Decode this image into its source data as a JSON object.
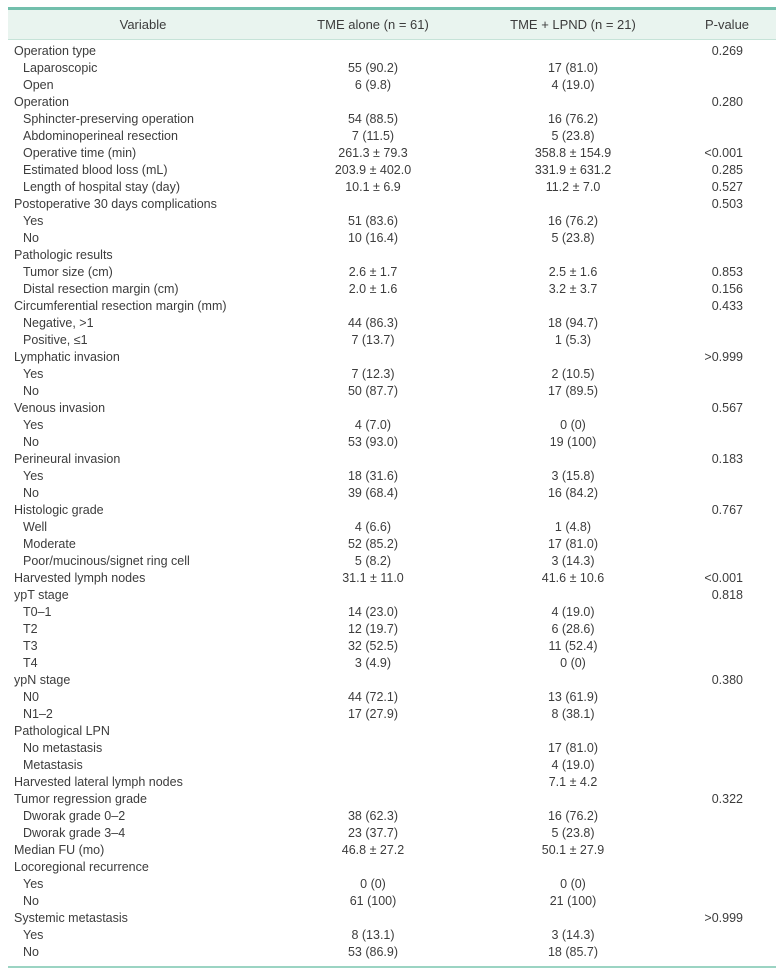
{
  "colors": {
    "top_border": "#72bfac",
    "header_bg": "#e9f4ef",
    "header_underline": "#c6e3d8",
    "bottom_border": "#9bd4c3",
    "text": "#3c3c3c"
  },
  "table": {
    "columns": [
      "Variable",
      "TME alone (n = 61)",
      "TME + LPND (n = 21)",
      "P-value"
    ],
    "rows": [
      {
        "label": "Operation type",
        "indent": 0,
        "c1": "",
        "c2": "",
        "p": "0.269"
      },
      {
        "label": "Laparoscopic",
        "indent": 1,
        "c1": "55 (90.2)",
        "c2": "17 (81.0)",
        "p": ""
      },
      {
        "label": "Open",
        "indent": 1,
        "c1": "6 (9.8)",
        "c2": "4 (19.0)",
        "p": ""
      },
      {
        "label": "Operation",
        "indent": 0,
        "c1": "",
        "c2": "",
        "p": "0.280"
      },
      {
        "label": "Sphincter-preserving operation",
        "indent": 1,
        "c1": "54 (88.5)",
        "c2": "16 (76.2)",
        "p": ""
      },
      {
        "label": "Abdominoperineal resection",
        "indent": 1,
        "c1": "7 (11.5)",
        "c2": "5 (23.8)",
        "p": ""
      },
      {
        "label": "Operative time (min)",
        "indent": 1,
        "c1": "261.3 ± 79.3",
        "c2": "358.8 ± 154.9",
        "p": "<0.001"
      },
      {
        "label": "Estimated blood loss (mL)",
        "indent": 1,
        "c1": "203.9 ± 402.0",
        "c2": "331.9 ± 631.2",
        "p": "0.285"
      },
      {
        "label": "Length of hospital stay (day)",
        "indent": 1,
        "c1": "10.1 ± 6.9",
        "c2": "11.2 ± 7.0",
        "p": "0.527"
      },
      {
        "label": "Postoperative 30 days complications",
        "indent": 0,
        "c1": "",
        "c2": "",
        "p": "0.503"
      },
      {
        "label": "Yes",
        "indent": 1,
        "c1": "51 (83.6)",
        "c2": "16 (76.2)",
        "p": ""
      },
      {
        "label": "No",
        "indent": 1,
        "c1": "10 (16.4)",
        "c2": "5 (23.8)",
        "p": ""
      },
      {
        "label": "Pathologic results",
        "indent": 0,
        "c1": "",
        "c2": "",
        "p": ""
      },
      {
        "label": "Tumor size (cm)",
        "indent": 1,
        "c1": "2.6 ± 1.7",
        "c2": "2.5 ± 1.6",
        "p": "0.853"
      },
      {
        "label": "Distal resection margin (cm)",
        "indent": 1,
        "c1": "2.0 ± 1.6",
        "c2": "3.2 ± 3.7",
        "p": "0.156"
      },
      {
        "label": "Circumferential resection margin (mm)",
        "indent": 0,
        "c1": "",
        "c2": "",
        "p": "0.433"
      },
      {
        "label": "Negative, >1",
        "indent": 1,
        "c1": "44 (86.3)",
        "c2": "18 (94.7)",
        "p": ""
      },
      {
        "label": "Positive, ≤1",
        "indent": 1,
        "c1": "7 (13.7)",
        "c2": "1 (5.3)",
        "p": ""
      },
      {
        "label": "Lymphatic invasion",
        "indent": 0,
        "c1": "",
        "c2": "",
        "p": ">0.999"
      },
      {
        "label": "Yes",
        "indent": 1,
        "c1": "7 (12.3)",
        "c2": "2 (10.5)",
        "p": ""
      },
      {
        "label": "No",
        "indent": 1,
        "c1": "50 (87.7)",
        "c2": "17 (89.5)",
        "p": ""
      },
      {
        "label": "Venous invasion",
        "indent": 0,
        "c1": "",
        "c2": "",
        "p": "0.567"
      },
      {
        "label": "Yes",
        "indent": 1,
        "c1": "4 (7.0)",
        "c2": "0 (0)",
        "p": ""
      },
      {
        "label": "No",
        "indent": 1,
        "c1": "53 (93.0)",
        "c2": "19 (100)",
        "p": ""
      },
      {
        "label": "Perineural invasion",
        "indent": 0,
        "c1": "",
        "c2": "",
        "p": "0.183"
      },
      {
        "label": "Yes",
        "indent": 1,
        "c1": "18 (31.6)",
        "c2": "3 (15.8)",
        "p": ""
      },
      {
        "label": "No",
        "indent": 1,
        "c1": "39 (68.4)",
        "c2": "16 (84.2)",
        "p": ""
      },
      {
        "label": "Histologic grade",
        "indent": 0,
        "c1": "",
        "c2": "",
        "p": "0.767"
      },
      {
        "label": "Well",
        "indent": 1,
        "c1": "4 (6.6)",
        "c2": "1 (4.8)",
        "p": ""
      },
      {
        "label": "Moderate",
        "indent": 1,
        "c1": "52 (85.2)",
        "c2": "17 (81.0)",
        "p": ""
      },
      {
        "label": "Poor/mucinous/signet ring cell",
        "indent": 1,
        "c1": "5 (8.2)",
        "c2": "3 (14.3)",
        "p": ""
      },
      {
        "label": "Harvested lymph nodes",
        "indent": 0,
        "c1": "31.1 ± 11.0",
        "c2": "41.6 ± 10.6",
        "p": "<0.001"
      },
      {
        "label": "ypT stage",
        "indent": 0,
        "c1": "",
        "c2": "",
        "p": "0.818"
      },
      {
        "label": "T0–1",
        "indent": 1,
        "c1": "14 (23.0)",
        "c2": "4 (19.0)",
        "p": ""
      },
      {
        "label": "T2",
        "indent": 1,
        "c1": "12 (19.7)",
        "c2": "6 (28.6)",
        "p": ""
      },
      {
        "label": "T3",
        "indent": 1,
        "c1": "32 (52.5)",
        "c2": "11 (52.4)",
        "p": ""
      },
      {
        "label": "T4",
        "indent": 1,
        "c1": "3 (4.9)",
        "c2": "0 (0)",
        "p": ""
      },
      {
        "label": "ypN stage",
        "indent": 0,
        "c1": "",
        "c2": "",
        "p": "0.380"
      },
      {
        "label": "N0",
        "indent": 1,
        "c1": "44 (72.1)",
        "c2": "13 (61.9)",
        "p": ""
      },
      {
        "label": "N1–2",
        "indent": 1,
        "c1": "17 (27.9)",
        "c2": "8 (38.1)",
        "p": ""
      },
      {
        "label": "Pathological LPN",
        "indent": 0,
        "c1": "",
        "c2": "",
        "p": ""
      },
      {
        "label": "No metastasis",
        "indent": 1,
        "c1": "",
        "c2": "17 (81.0)",
        "p": ""
      },
      {
        "label": "Metastasis",
        "indent": 1,
        "c1": "",
        "c2": "4 (19.0)",
        "p": ""
      },
      {
        "label": "Harvested lateral lymph nodes",
        "indent": 0,
        "c1": "",
        "c2": "7.1 ± 4.2",
        "p": ""
      },
      {
        "label": "Tumor regression grade",
        "indent": 0,
        "c1": "",
        "c2": "",
        "p": "0.322"
      },
      {
        "label": "Dworak grade 0–2",
        "indent": 1,
        "c1": "38 (62.3)",
        "c2": "16 (76.2)",
        "p": ""
      },
      {
        "label": "Dworak grade 3–4",
        "indent": 1,
        "c1": "23 (37.7)",
        "c2": "5 (23.8)",
        "p": ""
      },
      {
        "label": "Median FU (mo)",
        "indent": 0,
        "c1": "46.8 ± 27.2",
        "c2": "50.1 ± 27.9",
        "p": ""
      },
      {
        "label": "Locoregional recurrence",
        "indent": 0,
        "c1": "",
        "c2": "",
        "p": ""
      },
      {
        "label": "Yes",
        "indent": 1,
        "c1": "0 (0)",
        "c2": "0 (0)",
        "p": ""
      },
      {
        "label": "No",
        "indent": 1,
        "c1": "61 (100)",
        "c2": "21 (100)",
        "p": ""
      },
      {
        "label": "Systemic metastasis",
        "indent": 0,
        "c1": "",
        "c2": "",
        "p": ">0.999"
      },
      {
        "label": "Yes",
        "indent": 1,
        "c1": "8 (13.1)",
        "c2": "3 (14.3)",
        "p": ""
      },
      {
        "label": "No",
        "indent": 1,
        "c1": "53 (86.9)",
        "c2": "18 (85.7)",
        "p": ""
      }
    ]
  }
}
